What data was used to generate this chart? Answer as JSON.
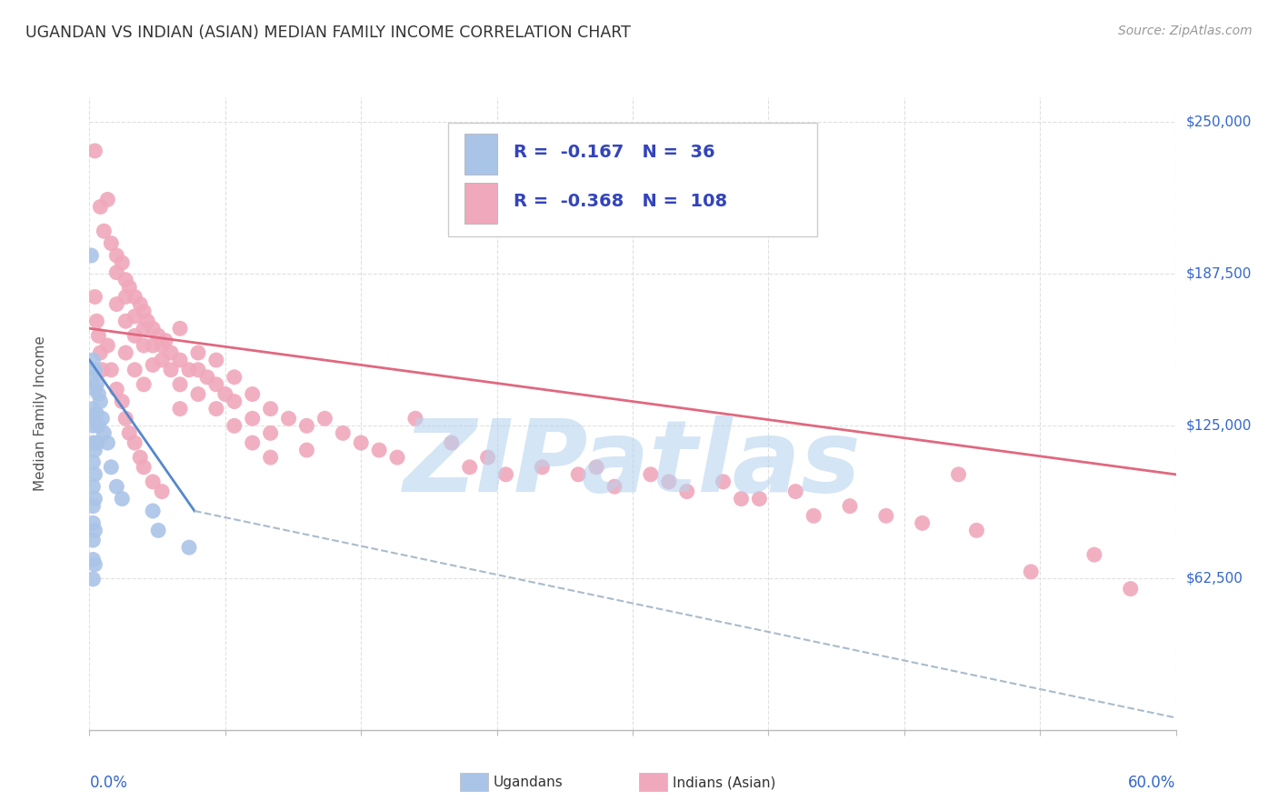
{
  "title": "UGANDAN VS INDIAN (ASIAN) MEDIAN FAMILY INCOME CORRELATION CHART",
  "source": "Source: ZipAtlas.com",
  "ylabel": "Median Family Income",
  "xlim": [
    0.0,
    0.6
  ],
  "ylim": [
    0,
    260000
  ],
  "yticks": [
    0,
    62500,
    125000,
    187500,
    250000
  ],
  "ytick_labels": [
    "",
    "$62,500",
    "$125,000",
    "$187,500",
    "$250,000"
  ],
  "xtick_labels": [
    "0.0%",
    "60.0%"
  ],
  "background_color": "#ffffff",
  "grid_color": "#e0e0e0",
  "watermark": "ZIPatlas",
  "watermark_color": "#b8d4ef",
  "ugandan_color": "#aac4e8",
  "indian_color": "#f0a8bc",
  "ugandan_line_color": "#5588cc",
  "indian_line_color": "#e06880",
  "dashed_line_color": "#aabbcc",
  "legend_color": "#3344bb",
  "ugandan_R": -0.167,
  "ugandan_N": 36,
  "indian_R": -0.368,
  "indian_N": 108,
  "ugandan_scatter": [
    [
      0.001,
      195000
    ],
    [
      0.002,
      152000
    ],
    [
      0.002,
      145000
    ],
    [
      0.002,
      132000
    ],
    [
      0.002,
      125000
    ],
    [
      0.002,
      118000
    ],
    [
      0.002,
      110000
    ],
    [
      0.002,
      100000
    ],
    [
      0.002,
      92000
    ],
    [
      0.002,
      85000
    ],
    [
      0.002,
      78000
    ],
    [
      0.002,
      70000
    ],
    [
      0.002,
      62000
    ],
    [
      0.003,
      148000
    ],
    [
      0.003,
      140000
    ],
    [
      0.003,
      128000
    ],
    [
      0.003,
      115000
    ],
    [
      0.003,
      105000
    ],
    [
      0.003,
      95000
    ],
    [
      0.003,
      82000
    ],
    [
      0.003,
      68000
    ],
    [
      0.004,
      142000
    ],
    [
      0.004,
      130000
    ],
    [
      0.004,
      118000
    ],
    [
      0.005,
      138000
    ],
    [
      0.005,
      125000
    ],
    [
      0.006,
      135000
    ],
    [
      0.007,
      128000
    ],
    [
      0.008,
      122000
    ],
    [
      0.01,
      118000
    ],
    [
      0.012,
      108000
    ],
    [
      0.015,
      100000
    ],
    [
      0.018,
      95000
    ],
    [
      0.035,
      90000
    ],
    [
      0.038,
      82000
    ],
    [
      0.055,
      75000
    ]
  ],
  "indian_scatter": [
    [
      0.003,
      238000
    ],
    [
      0.006,
      215000
    ],
    [
      0.008,
      205000
    ],
    [
      0.01,
      218000
    ],
    [
      0.012,
      200000
    ],
    [
      0.015,
      195000
    ],
    [
      0.015,
      188000
    ],
    [
      0.015,
      175000
    ],
    [
      0.018,
      192000
    ],
    [
      0.02,
      185000
    ],
    [
      0.02,
      178000
    ],
    [
      0.02,
      168000
    ],
    [
      0.022,
      182000
    ],
    [
      0.025,
      178000
    ],
    [
      0.025,
      170000
    ],
    [
      0.025,
      162000
    ],
    [
      0.028,
      175000
    ],
    [
      0.03,
      172000
    ],
    [
      0.03,
      165000
    ],
    [
      0.03,
      158000
    ],
    [
      0.032,
      168000
    ],
    [
      0.035,
      165000
    ],
    [
      0.035,
      158000
    ],
    [
      0.035,
      150000
    ],
    [
      0.038,
      162000
    ],
    [
      0.04,
      158000
    ],
    [
      0.04,
      152000
    ],
    [
      0.042,
      160000
    ],
    [
      0.045,
      155000
    ],
    [
      0.045,
      148000
    ],
    [
      0.05,
      165000
    ],
    [
      0.05,
      152000
    ],
    [
      0.05,
      142000
    ],
    [
      0.05,
      132000
    ],
    [
      0.055,
      148000
    ],
    [
      0.06,
      155000
    ],
    [
      0.06,
      148000
    ],
    [
      0.06,
      138000
    ],
    [
      0.065,
      145000
    ],
    [
      0.07,
      152000
    ],
    [
      0.07,
      142000
    ],
    [
      0.07,
      132000
    ],
    [
      0.075,
      138000
    ],
    [
      0.08,
      145000
    ],
    [
      0.08,
      135000
    ],
    [
      0.08,
      125000
    ],
    [
      0.09,
      138000
    ],
    [
      0.09,
      128000
    ],
    [
      0.09,
      118000
    ],
    [
      0.1,
      132000
    ],
    [
      0.1,
      122000
    ],
    [
      0.1,
      112000
    ],
    [
      0.11,
      128000
    ],
    [
      0.12,
      125000
    ],
    [
      0.12,
      115000
    ],
    [
      0.13,
      128000
    ],
    [
      0.14,
      122000
    ],
    [
      0.15,
      118000
    ],
    [
      0.16,
      115000
    ],
    [
      0.17,
      112000
    ],
    [
      0.18,
      128000
    ],
    [
      0.2,
      118000
    ],
    [
      0.21,
      108000
    ],
    [
      0.22,
      112000
    ],
    [
      0.23,
      105000
    ],
    [
      0.25,
      108000
    ],
    [
      0.27,
      105000
    ],
    [
      0.29,
      100000
    ],
    [
      0.31,
      105000
    ],
    [
      0.33,
      98000
    ],
    [
      0.35,
      102000
    ],
    [
      0.37,
      95000
    ],
    [
      0.39,
      98000
    ],
    [
      0.42,
      92000
    ],
    [
      0.44,
      88000
    ],
    [
      0.46,
      85000
    ],
    [
      0.48,
      105000
    ],
    [
      0.49,
      82000
    ],
    [
      0.52,
      65000
    ],
    [
      0.555,
      72000
    ],
    [
      0.575,
      58000
    ],
    [
      0.01,
      158000
    ],
    [
      0.012,
      148000
    ],
    [
      0.015,
      140000
    ],
    [
      0.018,
      135000
    ],
    [
      0.02,
      128000
    ],
    [
      0.022,
      122000
    ],
    [
      0.025,
      118000
    ],
    [
      0.028,
      112000
    ],
    [
      0.03,
      108000
    ],
    [
      0.035,
      102000
    ],
    [
      0.04,
      98000
    ],
    [
      0.003,
      178000
    ],
    [
      0.004,
      168000
    ],
    [
      0.005,
      162000
    ],
    [
      0.006,
      155000
    ],
    [
      0.007,
      148000
    ],
    [
      0.02,
      155000
    ],
    [
      0.025,
      148000
    ],
    [
      0.03,
      142000
    ],
    [
      0.28,
      108000
    ],
    [
      0.32,
      102000
    ],
    [
      0.36,
      95000
    ],
    [
      0.4,
      88000
    ]
  ],
  "ugandan_line": [
    [
      0.0,
      152000
    ],
    [
      0.058,
      90000
    ]
  ],
  "indian_line": [
    [
      0.0,
      165000
    ],
    [
      0.6,
      105000
    ]
  ],
  "dashed_line": [
    [
      0.058,
      90000
    ],
    [
      0.6,
      5000
    ]
  ]
}
